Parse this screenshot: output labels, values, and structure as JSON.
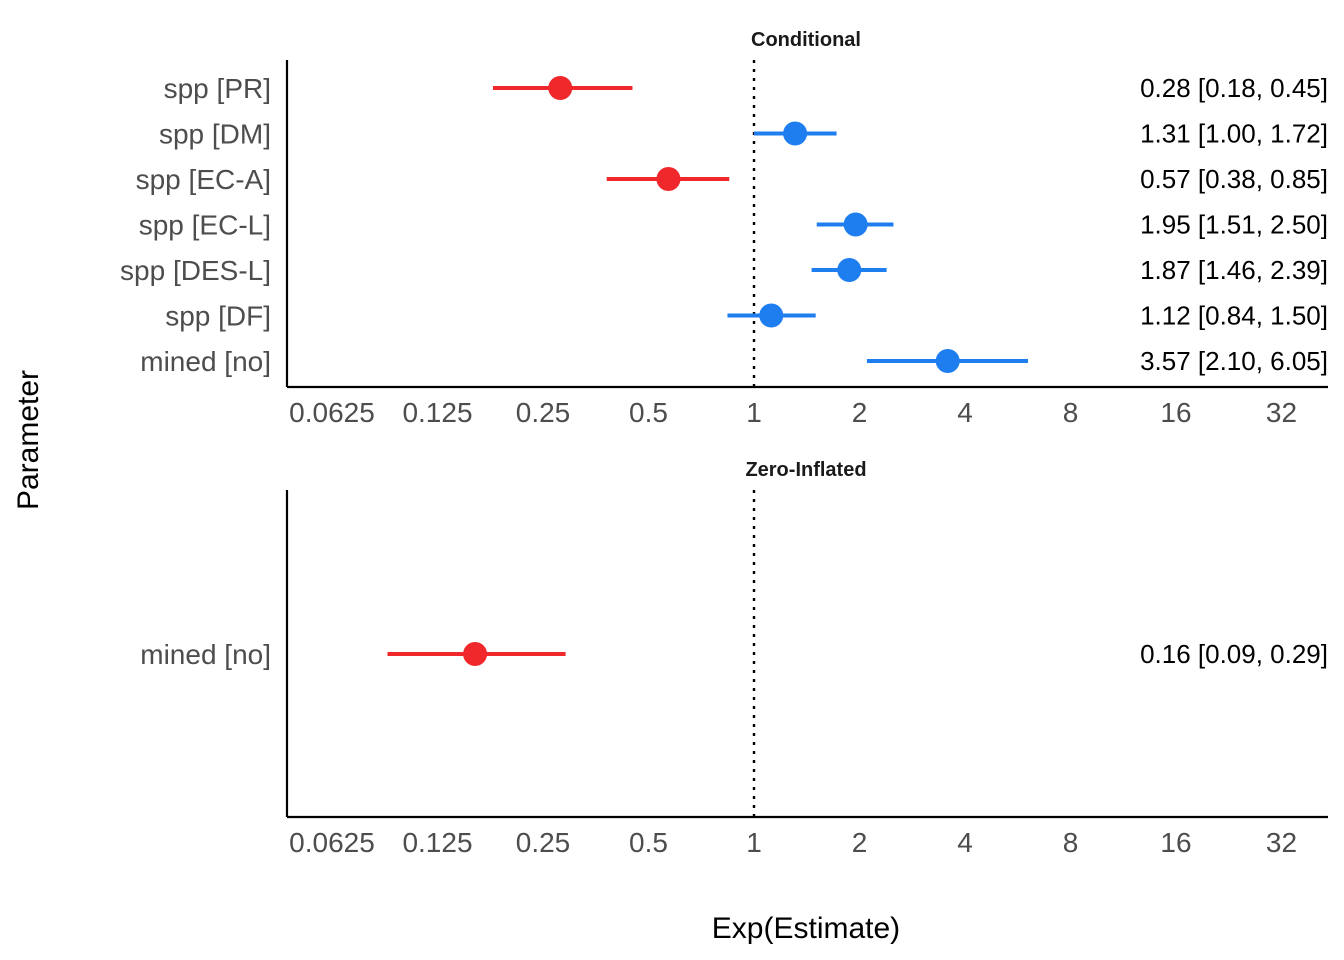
{
  "chart_data": {
    "type": "scatter",
    "xlabel": "Exp(Estimate)",
    "ylabel": "Parameter",
    "x_scale": "log2",
    "xlim": [
      0.0625,
      45
    ],
    "x_ticks": [
      0.0625,
      0.125,
      0.25,
      0.5,
      1,
      2,
      4,
      8,
      16,
      32
    ],
    "x_tick_labels": [
      "0.0625",
      "0.125",
      "0.25",
      "0.5",
      "1",
      "2",
      "4",
      "8",
      "16",
      "32"
    ],
    "reference_line": 1,
    "grid": false,
    "colors": {
      "negative": "#f0282c",
      "positive": "#1e7ef0"
    },
    "panels": [
      {
        "title": "Conditional",
        "rows": [
          {
            "parameter": "spp [PR]",
            "estimate": 0.28,
            "ci_low": 0.18,
            "ci_high": 0.45,
            "label": "0.28 [0.18, 0.45]"
          },
          {
            "parameter": "spp [DM]",
            "estimate": 1.31,
            "ci_low": 1.0,
            "ci_high": 1.72,
            "label": "1.31 [1.00, 1.72]"
          },
          {
            "parameter": "spp [EC-A]",
            "estimate": 0.57,
            "ci_low": 0.38,
            "ci_high": 0.85,
            "label": "0.57 [0.38, 0.85]"
          },
          {
            "parameter": "spp [EC-L]",
            "estimate": 1.95,
            "ci_low": 1.51,
            "ci_high": 2.5,
            "label": "1.95 [1.51, 2.50]"
          },
          {
            "parameter": "spp [DES-L]",
            "estimate": 1.87,
            "ci_low": 1.46,
            "ci_high": 2.39,
            "label": "1.87 [1.46, 2.39]"
          },
          {
            "parameter": "spp [DF]",
            "estimate": 1.12,
            "ci_low": 0.84,
            "ci_high": 1.5,
            "label": "1.12 [0.84, 1.50]"
          },
          {
            "parameter": "mined [no]",
            "estimate": 3.57,
            "ci_low": 2.1,
            "ci_high": 6.05,
            "label": "3.57 [2.10, 6.05]"
          }
        ]
      },
      {
        "title": "Zero-Inflated",
        "rows": [
          {
            "parameter": "mined [no]",
            "estimate": 0.16,
            "ci_low": 0.09,
            "ci_high": 0.29,
            "label": "0.16 [0.09, 0.29]"
          }
        ]
      }
    ]
  }
}
